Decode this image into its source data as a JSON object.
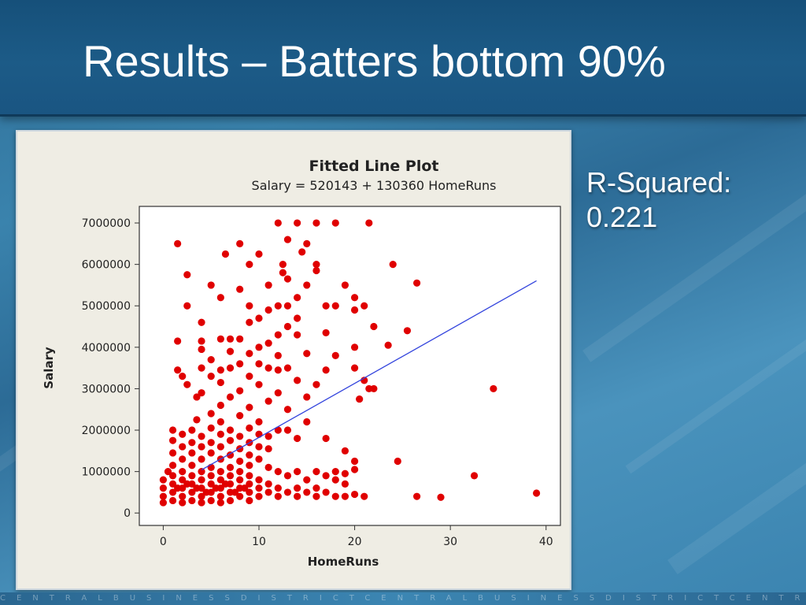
{
  "slide": {
    "title": "Results – Batters bottom 90%",
    "rsquared_label": "R-Squared:",
    "rsquared_value": "0.221",
    "footer_text": "CENTRALBUSINESSDISTRICTCENTRALBUSINESSDISTRICTCENTRA"
  },
  "chart_data": {
    "type": "scatter",
    "title": "Fitted Line Plot",
    "subtitle": "Salary = 520143 + 130360 HomeRuns",
    "xlabel": "HomeRuns",
    "ylabel": "Salary",
    "xlim": [
      -2.5,
      41.5
    ],
    "ylim": [
      -300000,
      7400000
    ],
    "xticks": [
      0,
      10,
      20,
      30,
      40
    ],
    "yticks": [
      0,
      1000000,
      2000000,
      3000000,
      4000000,
      5000000,
      6000000,
      7000000
    ],
    "point_color": "#e00000",
    "fit_color": "#3344dd",
    "fit": {
      "intercept": 520143,
      "slope": 130360,
      "x_range": [
        4,
        39
      ]
    },
    "points": [
      [
        12,
        7000000
      ],
      [
        14,
        7000000
      ],
      [
        16,
        7000000
      ],
      [
        18,
        7000000
      ],
      [
        21.5,
        7000000
      ],
      [
        1.5,
        6500000
      ],
      [
        8,
        6500000
      ],
      [
        13,
        6600000
      ],
      [
        15,
        6500000
      ],
      [
        14.5,
        6300000
      ],
      [
        6.5,
        6250000
      ],
      [
        10,
        6250000
      ],
      [
        9,
        6000000
      ],
      [
        12.5,
        6000000
      ],
      [
        16,
        6000000
      ],
      [
        16,
        5850000
      ],
      [
        24,
        6000000
      ],
      [
        12.5,
        5800000
      ],
      [
        13,
        5650000
      ],
      [
        2.5,
        5750000
      ],
      [
        26.5,
        5550000
      ],
      [
        11,
        5500000
      ],
      [
        15,
        5500000
      ],
      [
        5,
        5500000
      ],
      [
        19,
        5500000
      ],
      [
        8,
        5400000
      ],
      [
        6,
        5200000
      ],
      [
        14,
        5200000
      ],
      [
        20,
        5200000
      ],
      [
        2.5,
        5000000
      ],
      [
        9,
        5000000
      ],
      [
        11,
        4900000
      ],
      [
        12,
        5000000
      ],
      [
        13,
        5000000
      ],
      [
        17,
        5000000
      ],
      [
        18,
        5000000
      ],
      [
        20,
        4900000
      ],
      [
        21,
        5000000
      ],
      [
        10,
        4700000
      ],
      [
        14,
        4700000
      ],
      [
        4,
        4600000
      ],
      [
        9,
        4600000
      ],
      [
        13,
        4500000
      ],
      [
        22,
        4500000
      ],
      [
        25.5,
        4400000
      ],
      [
        17,
        4350000
      ],
      [
        12,
        4300000
      ],
      [
        14,
        4300000
      ],
      [
        1.5,
        4150000
      ],
      [
        4,
        4150000
      ],
      [
        6,
        4200000
      ],
      [
        7,
        4200000
      ],
      [
        8,
        4200000
      ],
      [
        10,
        4000000
      ],
      [
        11,
        4100000
      ],
      [
        20,
        4000000
      ],
      [
        23.5,
        4050000
      ],
      [
        4,
        3950000
      ],
      [
        7,
        3900000
      ],
      [
        9,
        3850000
      ],
      [
        12,
        3800000
      ],
      [
        15,
        3850000
      ],
      [
        18,
        3800000
      ],
      [
        5,
        3700000
      ],
      [
        8,
        3600000
      ],
      [
        10,
        3600000
      ],
      [
        13,
        3500000
      ],
      [
        20,
        3500000
      ],
      [
        1.5,
        3450000
      ],
      [
        4,
        3500000
      ],
      [
        6,
        3450000
      ],
      [
        7,
        3500000
      ],
      [
        11,
        3500000
      ],
      [
        12,
        3450000
      ],
      [
        17,
        3450000
      ],
      [
        2,
        3300000
      ],
      [
        5,
        3300000
      ],
      [
        9,
        3300000
      ],
      [
        14,
        3200000
      ],
      [
        21,
        3200000
      ],
      [
        2.5,
        3100000
      ],
      [
        6,
        3150000
      ],
      [
        10,
        3100000
      ],
      [
        16,
        3100000
      ],
      [
        21.5,
        3000000
      ],
      [
        22,
        3000000
      ],
      [
        34.5,
        3000000
      ],
      [
        4,
        2900000
      ],
      [
        8,
        2950000
      ],
      [
        12,
        2900000
      ],
      [
        3.5,
        2800000
      ],
      [
        7,
        2800000
      ],
      [
        11,
        2700000
      ],
      [
        15,
        2800000
      ],
      [
        20.5,
        2750000
      ],
      [
        6,
        2600000
      ],
      [
        9,
        2550000
      ],
      [
        13,
        2500000
      ],
      [
        5,
        2400000
      ],
      [
        8,
        2350000
      ],
      [
        3.5,
        2250000
      ],
      [
        6,
        2200000
      ],
      [
        10,
        2200000
      ],
      [
        15,
        2200000
      ],
      [
        1,
        2000000
      ],
      [
        3,
        2000000
      ],
      [
        5,
        2050000
      ],
      [
        7,
        2000000
      ],
      [
        9,
        2050000
      ],
      [
        12,
        2000000
      ],
      [
        13,
        2000000
      ],
      [
        2,
        1900000
      ],
      [
        4,
        1850000
      ],
      [
        6,
        1900000
      ],
      [
        8,
        1850000
      ],
      [
        10,
        1900000
      ],
      [
        11,
        1850000
      ],
      [
        14,
        1800000
      ],
      [
        17,
        1800000
      ],
      [
        1,
        1750000
      ],
      [
        3,
        1700000
      ],
      [
        5,
        1700000
      ],
      [
        7,
        1750000
      ],
      [
        9,
        1700000
      ],
      [
        2,
        1600000
      ],
      [
        4,
        1600000
      ],
      [
        6,
        1600000
      ],
      [
        8,
        1550000
      ],
      [
        10,
        1600000
      ],
      [
        11,
        1550000
      ],
      [
        19,
        1500000
      ],
      [
        1,
        1450000
      ],
      [
        3,
        1450000
      ],
      [
        5,
        1450000
      ],
      [
        7,
        1400000
      ],
      [
        9,
        1400000
      ],
      [
        2,
        1300000
      ],
      [
        4,
        1300000
      ],
      [
        6,
        1300000
      ],
      [
        8,
        1250000
      ],
      [
        10,
        1300000
      ],
      [
        20,
        1250000
      ],
      [
        24.5,
        1250000
      ],
      [
        1,
        1150000
      ],
      [
        3,
        1150000
      ],
      [
        5,
        1100000
      ],
      [
        7,
        1100000
      ],
      [
        9,
        1150000
      ],
      [
        11,
        1100000
      ],
      [
        0.5,
        1000000
      ],
      [
        2,
        1000000
      ],
      [
        4,
        1000000
      ],
      [
        6,
        1000000
      ],
      [
        8,
        1000000
      ],
      [
        12,
        1000000
      ],
      [
        14,
        1000000
      ],
      [
        16,
        1000000
      ],
      [
        18,
        1000000
      ],
      [
        19,
        950000
      ],
      [
        20,
        1050000
      ],
      [
        1,
        900000
      ],
      [
        3,
        900000
      ],
      [
        5,
        900000
      ],
      [
        7,
        900000
      ],
      [
        9,
        900000
      ],
      [
        13,
        900000
      ],
      [
        17,
        900000
      ],
      [
        32.5,
        900000
      ],
      [
        0,
        800000
      ],
      [
        2,
        800000
      ],
      [
        4,
        800000
      ],
      [
        6,
        800000
      ],
      [
        8,
        800000
      ],
      [
        10,
        800000
      ],
      [
        15,
        800000
      ],
      [
        18,
        800000
      ],
      [
        1,
        700000
      ],
      [
        3,
        700000
      ],
      [
        5,
        700000
      ],
      [
        7,
        700000
      ],
      [
        9,
        700000
      ],
      [
        11,
        700000
      ],
      [
        19,
        700000
      ],
      [
        0,
        600000
      ],
      [
        2,
        600000
      ],
      [
        4,
        600000
      ],
      [
        6,
        600000
      ],
      [
        8,
        600000
      ],
      [
        10,
        600000
      ],
      [
        12,
        600000
      ],
      [
        14,
        600000
      ],
      [
        16,
        600000
      ],
      [
        1,
        500000
      ],
      [
        3,
        500000
      ],
      [
        5,
        500000
      ],
      [
        7,
        500000
      ],
      [
        9,
        500000
      ],
      [
        11,
        500000
      ],
      [
        13,
        500000
      ],
      [
        15,
        500000
      ],
      [
        17,
        500000
      ],
      [
        20,
        450000
      ],
      [
        0,
        400000
      ],
      [
        2,
        400000
      ],
      [
        4,
        400000
      ],
      [
        6,
        400000
      ],
      [
        8,
        400000
      ],
      [
        10,
        400000
      ],
      [
        12,
        400000
      ],
      [
        14,
        400000
      ],
      [
        16,
        400000
      ],
      [
        18,
        400000
      ],
      [
        19,
        400000
      ],
      [
        21,
        400000
      ],
      [
        26.5,
        400000
      ],
      [
        29,
        380000
      ],
      [
        39,
        480000
      ],
      [
        1,
        300000
      ],
      [
        3,
        300000
      ],
      [
        5,
        300000
      ],
      [
        7,
        300000
      ],
      [
        9,
        300000
      ],
      [
        0,
        250000
      ],
      [
        2,
        250000
      ],
      [
        4,
        250000
      ],
      [
        6,
        250000
      ],
      [
        1.5,
        600000
      ],
      [
        2.5,
        700000
      ],
      [
        3.5,
        600000
      ],
      [
        4.5,
        500000
      ],
      [
        5.5,
        600000
      ],
      [
        6.5,
        700000
      ],
      [
        7.5,
        500000
      ],
      [
        8.5,
        600000
      ]
    ]
  }
}
